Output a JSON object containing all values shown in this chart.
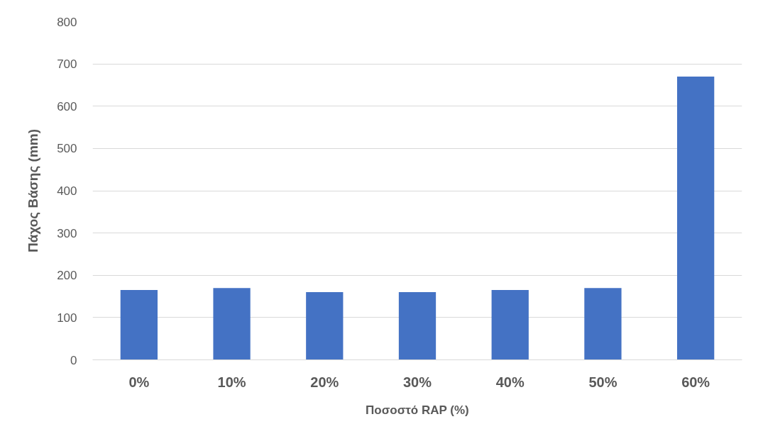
{
  "chart_data": {
    "type": "bar",
    "xlabel": "Ποσοστό RAP (%)",
    "ylabel": "Πάχος Βάσης (mm)",
    "categories": [
      "0%",
      "10%",
      "20%",
      "30%",
      "40%",
      "50%",
      "60%"
    ],
    "values": [
      165,
      170,
      160,
      160,
      165,
      170,
      670
    ],
    "color": "#4472c4",
    "ylim": [
      0,
      800
    ],
    "yticks": [
      0,
      100,
      200,
      300,
      400,
      500,
      600,
      700,
      800
    ],
    "grid": "y"
  }
}
